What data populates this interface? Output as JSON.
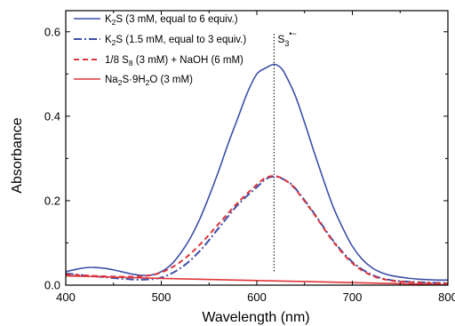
{
  "chart_data": {
    "type": "line",
    "title": "",
    "xlabel": "Wavelength (nm)",
    "ylabel": "Absorbance",
    "xlim": [
      400,
      800
    ],
    "ylim": [
      0.0,
      0.65
    ],
    "x_ticks": [
      "400",
      "500",
      "600",
      "700",
      "800"
    ],
    "y_ticks": [
      "0.0",
      "0.2",
      "0.4",
      "0.6"
    ],
    "grid": false,
    "legend_position": "top-left",
    "annotation": {
      "text_main": "S",
      "text_sub": "3",
      "text_sup": "•−",
      "x": 618,
      "style": "dotted vertical line"
    },
    "series": [
      {
        "name": "K2S (3 mM, equal to 6 equiv.)",
        "legend": {
          "pre": "K",
          "sub": "2",
          "post": "S (3 mM, equal to 6 equiv.)"
        },
        "color": "#3d4fa8",
        "dash": "solid",
        "x": [
          400,
          410,
          420,
          430,
          440,
          450,
          460,
          470,
          480,
          490,
          500,
          510,
          520,
          530,
          540,
          550,
          560,
          570,
          580,
          590,
          600,
          610,
          618,
          625,
          630,
          640,
          650,
          660,
          670,
          680,
          690,
          700,
          710,
          720,
          730,
          740,
          750,
          760,
          770,
          780,
          790,
          800
        ],
        "y": [
          0.032,
          0.037,
          0.041,
          0.042,
          0.04,
          0.036,
          0.031,
          0.026,
          0.023,
          0.024,
          0.032,
          0.048,
          0.075,
          0.11,
          0.155,
          0.21,
          0.27,
          0.335,
          0.395,
          0.455,
          0.5,
          0.515,
          0.523,
          0.515,
          0.498,
          0.45,
          0.385,
          0.315,
          0.248,
          0.185,
          0.135,
          0.092,
          0.062,
          0.042,
          0.03,
          0.023,
          0.019,
          0.016,
          0.014,
          0.013,
          0.012,
          0.012
        ]
      },
      {
        "name": "K2S (1.5 mM, equal to 3 equiv.)",
        "legend": {
          "pre": "K",
          "sub": "2",
          "post": "S (1.5 mM, equal to 3 equiv.)"
        },
        "color": "#3d4fa8",
        "dash": "dashdot",
        "x": [
          400,
          420,
          440,
          460,
          480,
          500,
          520,
          540,
          560,
          580,
          600,
          610,
          620,
          630,
          640,
          660,
          680,
          700,
          720,
          740,
          760,
          780,
          800
        ],
        "y": [
          0.028,
          0.023,
          0.019,
          0.015,
          0.013,
          0.018,
          0.04,
          0.08,
          0.135,
          0.19,
          0.232,
          0.252,
          0.257,
          0.248,
          0.23,
          0.17,
          0.105,
          0.055,
          0.025,
          0.012,
          0.008,
          0.006,
          0.005
        ]
      },
      {
        "name": "1/8 S8 (3 mM) + NaOH (6 mM)",
        "legend": {
          "pre": "1/8 S",
          "sub": "8",
          "post": " (3 mM) + NaOH (6 mM)"
        },
        "color": "#e0353a",
        "dash": "dashed",
        "x": [
          400,
          420,
          440,
          460,
          480,
          500,
          520,
          540,
          560,
          580,
          600,
          610,
          620,
          630,
          640,
          660,
          680,
          700,
          720,
          740,
          760,
          780,
          800
        ],
        "y": [
          0.025,
          0.023,
          0.021,
          0.02,
          0.021,
          0.03,
          0.055,
          0.095,
          0.145,
          0.195,
          0.238,
          0.255,
          0.258,
          0.248,
          0.228,
          0.168,
          0.103,
          0.052,
          0.023,
          0.011,
          0.007,
          0.005,
          0.004
        ]
      },
      {
        "name": "Na2S·9H2O (3 mM)",
        "legend": {
          "pre": "Na",
          "sub": "2",
          "post": "S·9H",
          "sub2": "2",
          "post2": "O (3 mM)"
        },
        "color": "#e0353a",
        "dash": "solid",
        "x": [
          400,
          500,
          600,
          700,
          800
        ],
        "y": [
          0.022,
          0.016,
          0.011,
          0.006,
          0.001
        ]
      }
    ]
  }
}
